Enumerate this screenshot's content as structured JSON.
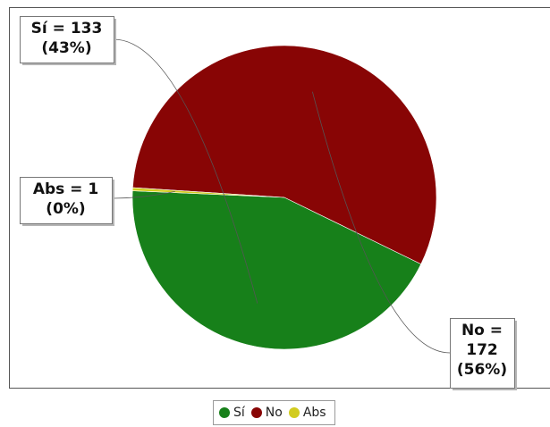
{
  "chart_data": {
    "type": "pie",
    "categories": [
      "Sí",
      "No",
      "Abs"
    ],
    "values": [
      133,
      172,
      1
    ],
    "percents": [
      "43%",
      "56%",
      "0%"
    ],
    "colors": [
      "#17801a",
      "#880505",
      "#d2cc1f"
    ],
    "labels": [
      {
        "line1": "Sí = 133",
        "line2": "(43%)"
      },
      {
        "line1": "No =",
        "line2": "172",
        "line3": "(56%)"
      },
      {
        "line1": "Abs = 1",
        "line2": "(0%)"
      }
    ],
    "legend": {
      "position": "bottom-center",
      "items": [
        "Sí",
        "No",
        "Abs"
      ]
    }
  }
}
